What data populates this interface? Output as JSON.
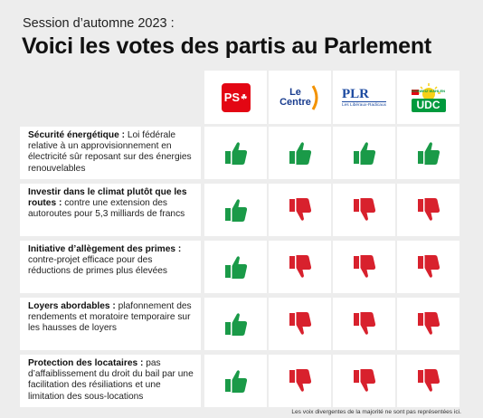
{
  "header": {
    "session": "Session d’automne 2023 :",
    "title": "Voici les votes des partis au Parlement"
  },
  "parties": [
    {
      "id": "ps",
      "label": "PS",
      "color": "#e30613"
    },
    {
      "id": "centre",
      "line1": "Le",
      "line2": "Centre",
      "color": "#1a3d8f",
      "accent": "#f39200"
    },
    {
      "id": "plr",
      "label": "PLR",
      "sublabel": "Les Libéraux-Radicaux",
      "color": "#1c4aa0"
    },
    {
      "id": "udc",
      "label": "UDC",
      "slogan": "SCHWEIZ WÄHLEN",
      "color": "#009a3d",
      "accent": "#f7d117"
    }
  ],
  "colors": {
    "thumb_up": "#1a9a48",
    "thumb_down": "#d8212d"
  },
  "rows": [
    {
      "bold": "Sécurité énergétique :",
      "text": " Loi fédérale relative à un approvisionnement en électricité sûr reposant sur des énergies renouvelables",
      "votes": [
        "up",
        "up",
        "up",
        "up"
      ]
    },
    {
      "bold": "Investir dans le climat plutôt que les routes :",
      "text": " contre une extension des autoroutes pour 5,3 milliards de francs",
      "votes": [
        "up",
        "down",
        "down",
        "down"
      ]
    },
    {
      "bold": "Initiative d’allègement des primes :",
      "text": " contre-projet efficace pour des réductions de primes plus élevées",
      "votes": [
        "up",
        "down",
        "down",
        "down"
      ]
    },
    {
      "bold": "Loyers abordables :",
      "text": " plafonnement des rendements et moratoire temporaire sur les hausses de loyers",
      "votes": [
        "up",
        "down",
        "down",
        "down"
      ]
    },
    {
      "bold": "Protection des locataires :",
      "text": " pas d’affaiblissement du droit du bail par une facilitation des résiliations et une limitation des sous-locations",
      "votes": [
        "up",
        "down",
        "down",
        "down"
      ]
    }
  ],
  "footnote": "Les voix divergentes de la majorité ne sont pas représentées ici."
}
